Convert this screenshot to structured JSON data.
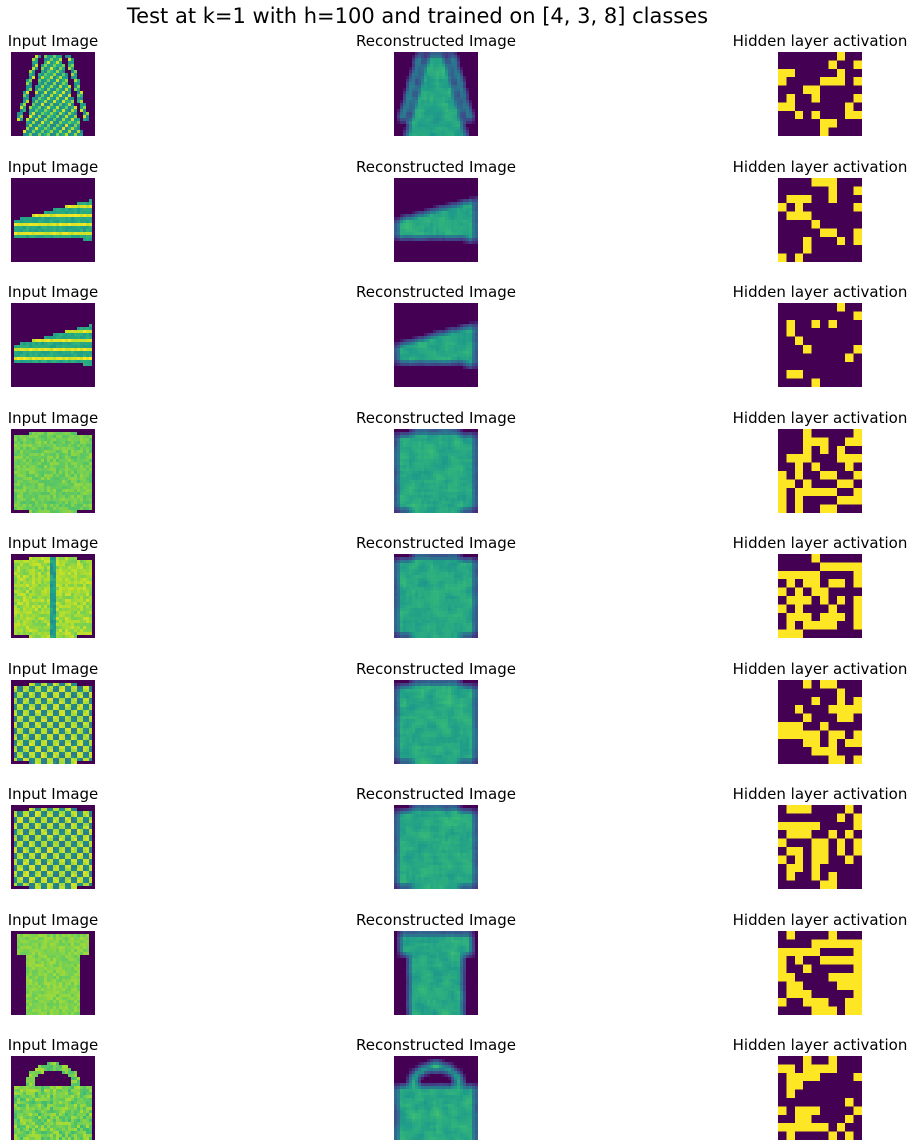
{
  "chart_data": {
    "type": "heatmap",
    "title": "Test at k=1 with h=100 and trained on [4, 3, 8] classes",
    "column_titles": [
      "Input Image",
      "Reconstructed Image",
      "Hidden layer activation"
    ],
    "colormap": "viridis",
    "axes_visible": false,
    "image_size": [
      28,
      28
    ],
    "hidden_grid_size": [
      10,
      10
    ],
    "rows": [
      {
        "item": "dress",
        "hidden": "0000000100000000100111000001001000011101000110000001001000011100000010001010001100000110000000010000"
      },
      {
        "item": "sneaker",
        "hidden": "0000111000000000100101110010001010000001011100000000001000000000011001000100010100010000001010000000"
      },
      {
        "item": "sneaker",
        "hidden": "0000000100000000000101001010000100000000001000000000010000010000000010000000000001100000000000100000"
      },
      {
        "item": "pullover",
        "hidden": "0001000001000111001100010101000111000111001010001010100110011101000110101111100110100001111010011000"
      },
      {
        "item": "coat",
        "hidden": "0000100000000001111111111000010101101101101011000001110101011010001001011101110101011110011110000000"
      },
      {
        "item": "shirt",
        "hidden": "0001011000000000010000001001010010001111000100011011100100001111101101000110101100001110000000001101"
      },
      {
        "item": "shirt",
        "hidden": "0111000010000000010111111000010111001010100011010101101101011010110010011010000001001010000000011000"
      },
      {
        "item": "t-shirt",
        "hidden": "0100001000000011111111111000011010011111100100000111000011110110000111011100000110011100110000111011"
      },
      {
        "item": "bag",
        "hidden": "0001001000110111100001111000010110000000010000000000000000101011100001001100001011111101000100001010"
      }
    ]
  }
}
